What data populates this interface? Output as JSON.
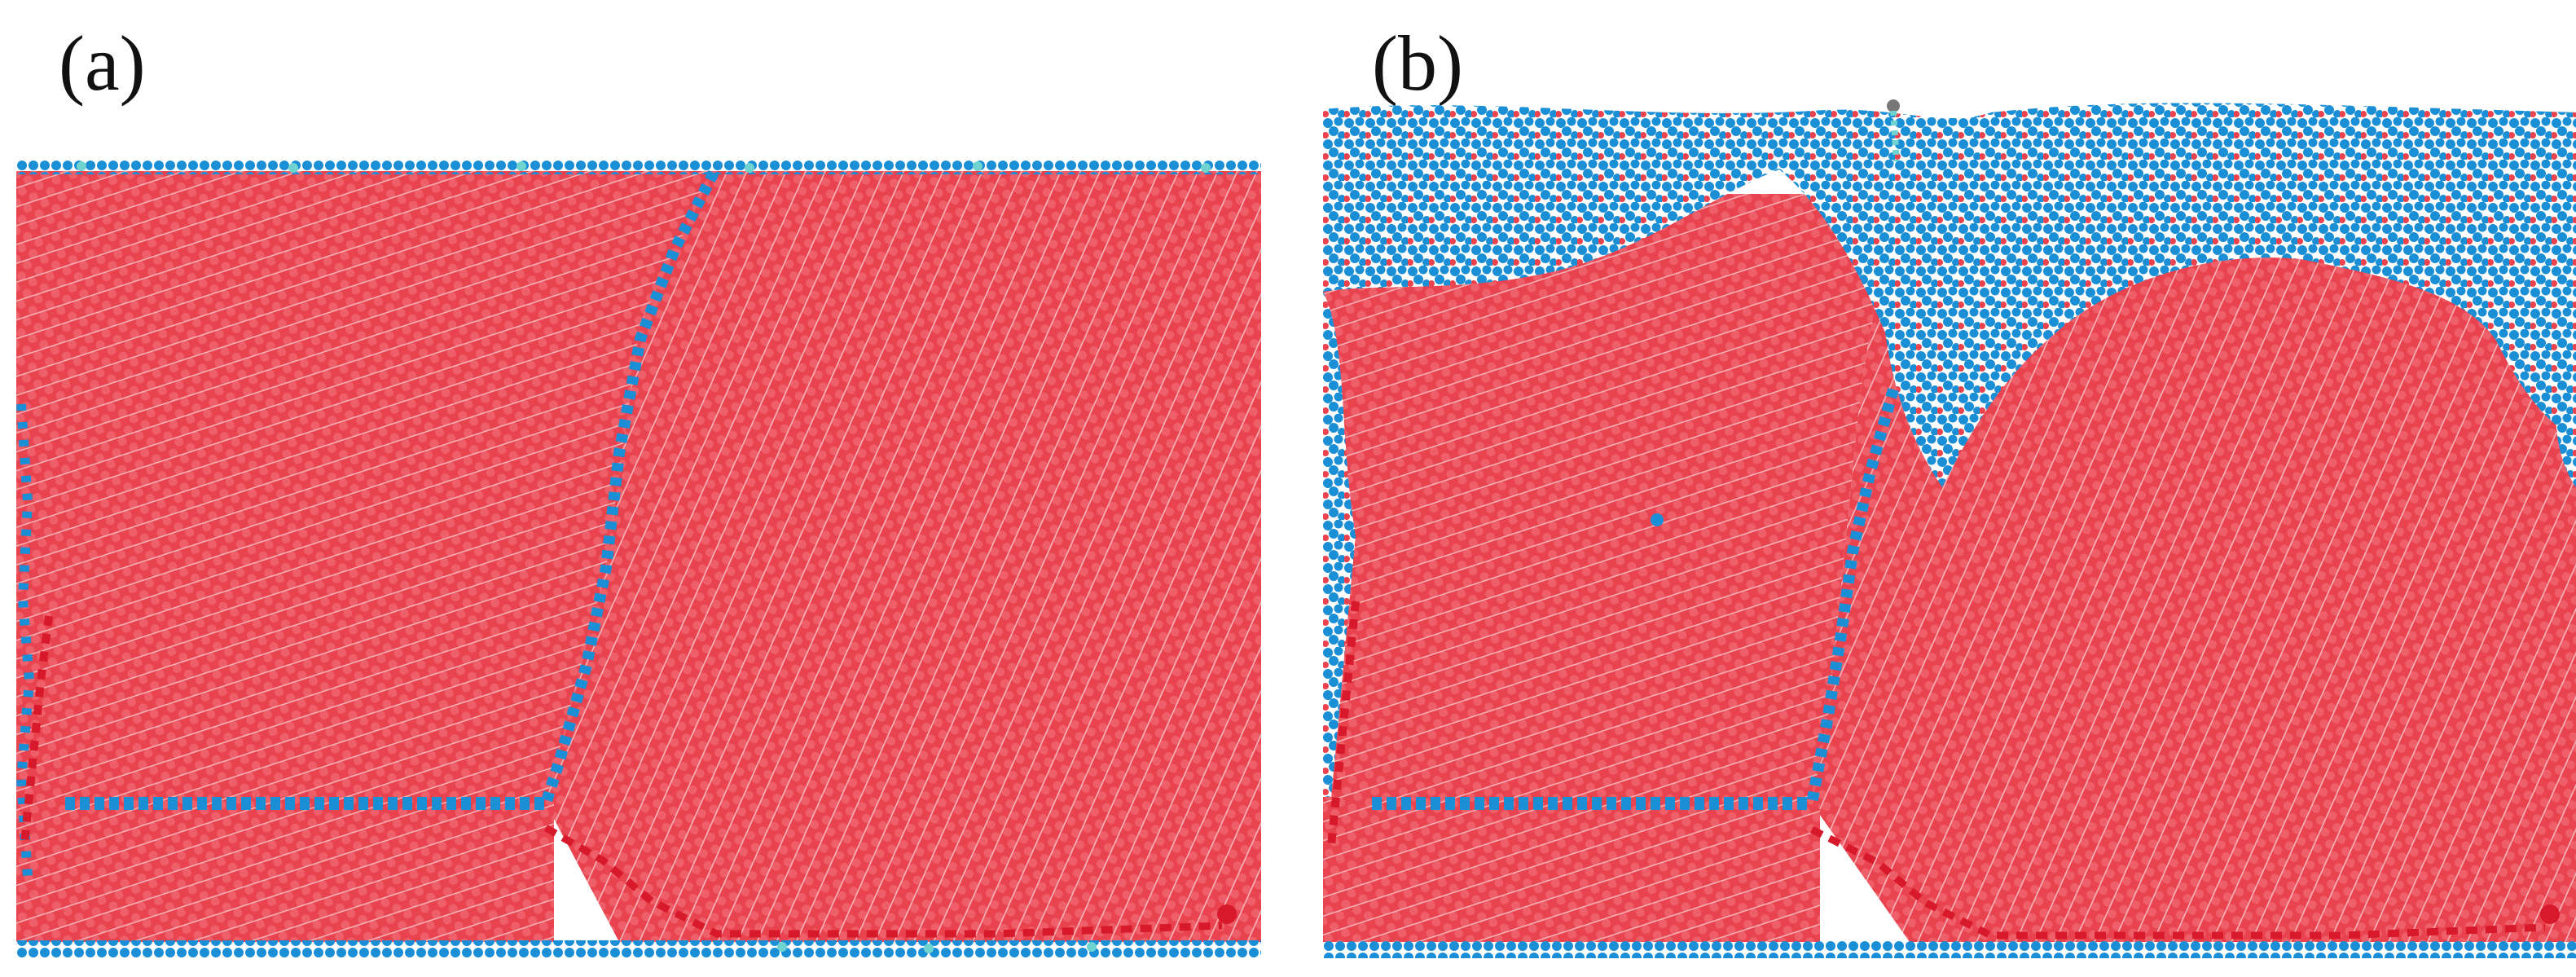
{
  "figure": {
    "panels": [
      {
        "label": "(a)"
      },
      {
        "label": "(b)"
      }
    ],
    "colors": {
      "crystal": "#e8434f",
      "crystal_light": "#f07a82",
      "defect": "#1b8fd6",
      "surface": "#6fd3d0",
      "dislocation": "#d7192b",
      "background": "#ffffff"
    }
  }
}
